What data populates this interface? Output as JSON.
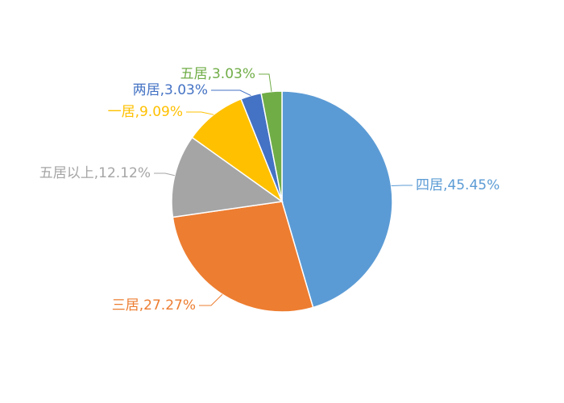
{
  "chart_data": {
    "type": "pie",
    "labels": [
      "四居,45.45%",
      "三居,27.27%",
      "五居以上,12.12%",
      "一居,9.09%",
      "两居,3.03%",
      "五居,3.03%"
    ],
    "values": [
      45.45,
      27.27,
      12.12,
      9.09,
      3.03,
      3.03
    ],
    "colors": [
      "#5b9bd5",
      "#ed7d31",
      "#a5a5a5",
      "#ffc000",
      "#4472c4",
      "#70ad47"
    ]
  }
}
